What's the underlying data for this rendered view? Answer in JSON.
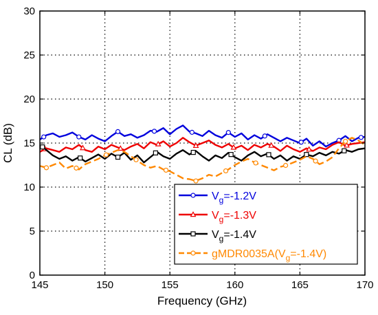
{
  "chart_data": {
    "type": "line",
    "title": "",
    "xlabel": "Frequency (GHz)",
    "ylabel": "CL (dB)",
    "xlim": [
      145,
      170
    ],
    "ylim": [
      0,
      30
    ],
    "xticks": [
      145,
      150,
      155,
      160,
      165,
      170
    ],
    "yticks": [
      0,
      5,
      10,
      15,
      20,
      25,
      30
    ],
    "grid": "dotted",
    "legend_position": "bottom-right",
    "series": [
      {
        "name": "Vg=-1.2V",
        "legend": {
          "base": "V",
          "sub": "g",
          "rest": "=-1.2V"
        },
        "color": "#0000dd",
        "marker": "circle",
        "x": [
          145,
          145.5,
          146,
          146.5,
          147,
          147.5,
          148,
          148.5,
          149,
          149.5,
          150,
          150.5,
          151,
          151.5,
          152,
          152.5,
          153,
          153.5,
          154,
          154.5,
          155,
          155.5,
          156,
          156.5,
          157,
          157.5,
          158,
          158.5,
          159,
          159.5,
          160,
          160.5,
          161,
          161.5,
          162,
          162.5,
          163,
          163.5,
          164,
          164.5,
          165,
          165.5,
          166,
          166.5,
          167,
          167.5,
          168,
          168.5,
          169,
          169.5,
          170
        ],
        "y": [
          15.4,
          15.9,
          16.1,
          15.7,
          15.9,
          16.2,
          15.7,
          15.4,
          15.9,
          15.5,
          15.2,
          15.8,
          16.3,
          15.8,
          16.0,
          15.6,
          15.9,
          16.4,
          16.3,
          16.7,
          16.0,
          16.6,
          17.0,
          16.3,
          16.1,
          15.8,
          16.4,
          15.9,
          15.6,
          16.2,
          15.7,
          16.1,
          15.4,
          15.9,
          15.5,
          16.0,
          15.6,
          15.2,
          15.6,
          15.3,
          15.0,
          15.5,
          14.7,
          15.2,
          14.6,
          15.0,
          15.3,
          15.8,
          15.2,
          15.6,
          15.7
        ],
        "marker_x": [
          145.3,
          148,
          151,
          153.8,
          156.7,
          159.5,
          162.3,
          165.1,
          168,
          169.7
        ]
      },
      {
        "name": "Vg=-1.3V",
        "legend": {
          "base": "V",
          "sub": "g",
          "rest": "=-1.3V"
        },
        "color": "#ee0000",
        "marker": "triangle",
        "x": [
          145,
          145.5,
          146,
          146.5,
          147,
          147.5,
          148,
          148.5,
          149,
          149.5,
          150,
          150.5,
          151,
          151.5,
          152,
          152.5,
          153,
          153.5,
          154,
          154.5,
          155,
          155.5,
          156,
          156.5,
          157,
          157.5,
          158,
          158.5,
          159,
          159.5,
          160,
          160.5,
          161,
          161.5,
          162,
          162.5,
          163,
          163.5,
          164,
          164.5,
          165,
          165.5,
          166,
          166.5,
          167,
          167.5,
          168,
          168.5,
          169,
          169.5,
          170
        ],
        "y": [
          14.0,
          14.4,
          14.2,
          14.0,
          14.5,
          14.3,
          14.8,
          14.2,
          14.0,
          14.6,
          14.3,
          14.8,
          14.5,
          14.2,
          14.6,
          14.9,
          14.4,
          15.1,
          14.8,
          15.2,
          14.6,
          15.0,
          15.6,
          15.1,
          14.7,
          15.0,
          15.3,
          14.8,
          14.5,
          14.9,
          14.4,
          14.7,
          14.2,
          14.8,
          14.5,
          14.9,
          14.6,
          14.1,
          14.7,
          14.3,
          14.0,
          14.4,
          14.1,
          14.5,
          14.3,
          14.8,
          15.1,
          14.7,
          14.9,
          15.0,
          15.1
        ],
        "marker_x": [
          145.4,
          148.3,
          151.2,
          154.1,
          157,
          159.9,
          162.8,
          165.7,
          168.6
        ]
      },
      {
        "name": "Vg=-1.4V",
        "legend": {
          "base": "V",
          "sub": "g",
          "rest": "=-1.4V"
        },
        "color": "#000000",
        "marker": "square",
        "x": [
          145,
          145.5,
          146,
          146.5,
          147,
          147.5,
          148,
          148.5,
          149,
          149.5,
          150,
          150.5,
          151,
          151.5,
          152,
          152.5,
          153,
          153.5,
          154,
          154.5,
          155,
          155.5,
          156,
          156.5,
          157,
          157.5,
          158,
          158.5,
          159,
          159.5,
          160,
          160.5,
          161,
          161.5,
          162,
          162.5,
          163,
          163.5,
          164,
          164.5,
          165,
          165.5,
          166,
          166.5,
          167,
          167.5,
          168,
          168.5,
          169,
          169.5,
          170
        ],
        "y": [
          14.8,
          14.2,
          13.6,
          13.2,
          13.5,
          13.0,
          13.4,
          12.9,
          13.3,
          13.7,
          13.2,
          13.8,
          13.4,
          13.9,
          13.1,
          13.6,
          12.8,
          13.4,
          14.0,
          13.5,
          13.2,
          13.8,
          14.2,
          13.7,
          14.1,
          13.5,
          13.0,
          13.6,
          13.3,
          13.9,
          13.4,
          13.0,
          13.6,
          14.0,
          13.5,
          13.8,
          13.2,
          13.6,
          13.0,
          13.5,
          13.2,
          13.7,
          13.5,
          13.9,
          13.6,
          14.0,
          13.8,
          14.2,
          14.0,
          14.3,
          14.4
        ],
        "marker_x": [
          145.2,
          148.1,
          151,
          153.9,
          156.8,
          159.7,
          162.6,
          165.5,
          168.4
        ]
      },
      {
        "name": "gMDR0035A(Vg=-1.4V)",
        "legend": {
          "base": "gMDR0035A(V",
          "sub": "g",
          "rest": "=-1.4V)"
        },
        "color": "#ff8800",
        "marker": "circle",
        "dashed": true,
        "x": [
          145,
          145.5,
          146,
          146.5,
          147,
          147.5,
          148,
          148.5,
          149,
          149.5,
          150,
          150.5,
          151,
          151.5,
          152,
          152.5,
          153,
          153.5,
          154,
          154.5,
          155,
          155.5,
          156,
          156.5,
          157,
          157.5,
          158,
          158.5,
          159,
          159.5,
          160,
          160.5,
          161,
          161.5,
          162,
          162.5,
          163,
          163.5,
          164,
          164.5,
          165,
          165.5,
          166,
          166.5,
          167,
          167.5,
          168,
          168.5,
          169,
          169.5,
          170
        ],
        "y": [
          12.4,
          12.2,
          12.5,
          12.8,
          12.1,
          12.4,
          12.0,
          12.6,
          12.9,
          13.2,
          13.6,
          13.9,
          14.2,
          14.0,
          13.5,
          13.0,
          12.5,
          12.2,
          12.4,
          12.0,
          11.8,
          11.4,
          11.0,
          10.9,
          10.7,
          11.0,
          11.4,
          11.2,
          11.6,
          12.0,
          12.5,
          12.9,
          13.2,
          12.8,
          12.5,
          12.2,
          11.9,
          12.3,
          12.5,
          12.8,
          13.1,
          13.5,
          13.2,
          12.6,
          12.9,
          13.4,
          14.4,
          15.2,
          15.6,
          15.3,
          14.8
        ],
        "marker_x": [
          145.5,
          147.8,
          150.1,
          152.4,
          154.7,
          157,
          159.3,
          161.6,
          163.9,
          166.2,
          168.5
        ]
      }
    ]
  }
}
